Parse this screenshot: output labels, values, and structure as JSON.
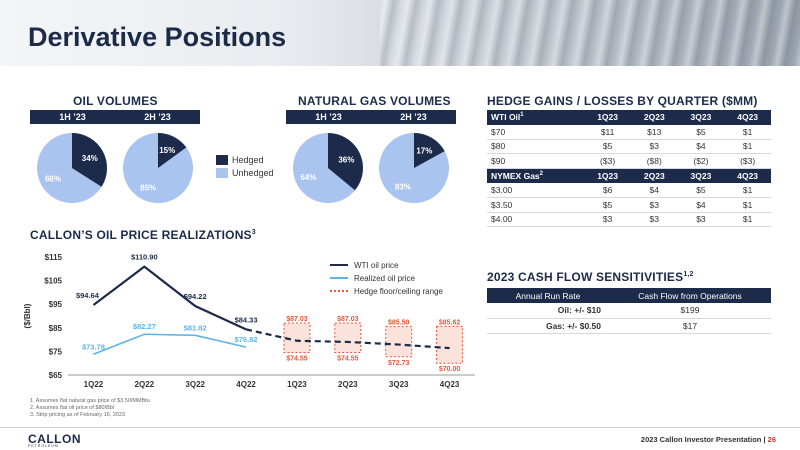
{
  "page_title": "Derivative Positions",
  "oil_volumes": {
    "title": "OIL VOLUMES",
    "periods": [
      "1H ’23",
      "2H ’23"
    ],
    "pies": [
      {
        "hedged": 34,
        "unhedged": 66,
        "hedged_label": "34%",
        "unhedged_label": "66%"
      },
      {
        "hedged": 15,
        "unhedged": 85,
        "hedged_label": "15%",
        "unhedged_label": "85%"
      }
    ]
  },
  "legend": {
    "hedged": "Hedged",
    "unhedged": "Unhedged"
  },
  "gas_volumes": {
    "title": "NATURAL GAS VOLUMES",
    "periods": [
      "1H ’23",
      "2H ’23"
    ],
    "pies": [
      {
        "hedged": 36,
        "unhedged": 64,
        "hedged_label": "36%",
        "unhedged_label": "64%"
      },
      {
        "hedged": 17,
        "unhedged": 83,
        "hedged_label": "17%",
        "unhedged_label": "83%"
      }
    ]
  },
  "hedge_table": {
    "title": "HEDGE GAINS / LOSSES BY QUARTER ($MM)",
    "wti_header": [
      "WTI Oil",
      "1Q23",
      "2Q23",
      "3Q23",
      "4Q23"
    ],
    "wti_sup": "1",
    "wti_rows": [
      [
        "$70",
        "$11",
        "$13",
        "$5",
        "$1"
      ],
      [
        "$80",
        "$5",
        "$3",
        "$4",
        "$1"
      ],
      [
        "$90",
        "($3)",
        "($8)",
        "($2)",
        "($3)"
      ]
    ],
    "gas_header": [
      "NYMEX Gas",
      "1Q23",
      "2Q23",
      "3Q23",
      "4Q23"
    ],
    "gas_sup": "2",
    "gas_rows": [
      [
        "$3.00",
        "$6",
        "$4",
        "$5",
        "$1"
      ],
      [
        "$3.50",
        "$5",
        "$3",
        "$4",
        "$1"
      ],
      [
        "$4.00",
        "$3",
        "$3",
        "$3",
        "$1"
      ]
    ]
  },
  "cash_flow": {
    "title": "2023 CASH FLOW SENSITIVITIES",
    "title_sup": "1,2",
    "headers": [
      "Annual Run Rate",
      "Cash Flow from Operations"
    ],
    "rows": [
      [
        "Oil: +/- $10",
        "$199"
      ],
      [
        "Gas: +/- $0.50",
        "$17"
      ]
    ]
  },
  "realizations_title": "CALLON’S OIL PRICE REALIZATIONS",
  "realizations_sup": "3",
  "chart_data": {
    "type": "line",
    "ylabel": "($/Bbl)",
    "ylim": [
      65,
      115
    ],
    "yticks": [
      "$65",
      "$75",
      "$85",
      "$95",
      "$105",
      "$115"
    ],
    "ytick_values": [
      65,
      75,
      85,
      95,
      105,
      115
    ],
    "categories": [
      "1Q22",
      "2Q22",
      "3Q22",
      "4Q22",
      "1Q23",
      "2Q23",
      "3Q23",
      "4Q23"
    ],
    "series": [
      {
        "name": "WTI oil price",
        "color": "#1c2b4a",
        "values": [
          94.64,
          110.9,
          94.22,
          84.33,
          79.5,
          79.0,
          77.9,
          76.4
        ],
        "labels": [
          "$94.64",
          "$110.90",
          "$94.22",
          "$84.33",
          null,
          null,
          null,
          null
        ]
      },
      {
        "name": "Realized oil price",
        "color": "#5db4e6",
        "values": [
          73.78,
          82.27,
          81.82,
          76.82,
          null,
          null,
          null,
          null
        ],
        "labels": [
          "$73.78",
          "$82.27",
          "$81.82",
          "$76.82",
          null,
          null,
          null,
          null
        ]
      }
    ],
    "hedge_range": {
      "name": "Hedge floor/ceiling range",
      "color": "#e8553a",
      "floors": [
        null,
        null,
        null,
        null,
        74.55,
        74.55,
        72.73,
        70.0
      ],
      "ceilings": [
        null,
        null,
        null,
        null,
        87.03,
        87.03,
        85.5,
        85.62
      ],
      "floor_labels": [
        "$74.55",
        "$74.55",
        "$72.73",
        "$70.00"
      ],
      "ceiling_labels": [
        "$87.03",
        "$87.03",
        "$85.50",
        "$85.62"
      ]
    }
  },
  "footnotes": [
    "1.  Assumes flat natural gas price of $3.50/MMBtu",
    "2.  Assumes flat oil price of $80/Bbl",
    "3.  Strip pricing as of February 16, 2023"
  ],
  "logo": "CALLON",
  "logo_sub": "PETROLEUM",
  "footer": "2023 Callon Investor Presentation",
  "page_number": "26",
  "colors": {
    "navy": "#1c2b4a",
    "light_blue": "#a9c4ef",
    "accent_red": "#e8553a"
  }
}
